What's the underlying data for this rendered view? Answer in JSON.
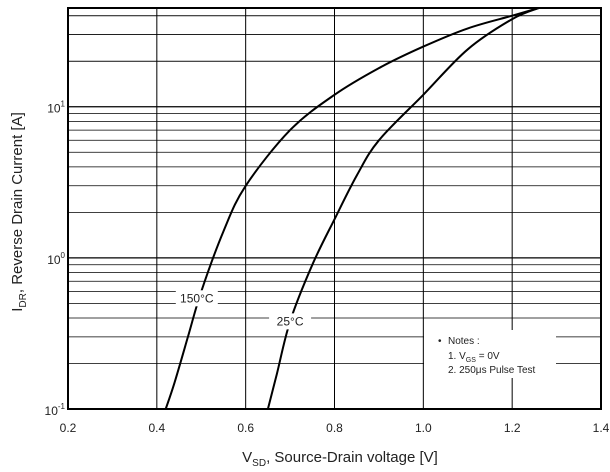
{
  "chart_data": {
    "type": "line",
    "xlabel": {
      "main": "V",
      "sub": "SD",
      "rest": ", Source-Drain voltage [V]"
    },
    "ylabel": {
      "main": "I",
      "sub": "DR",
      "rest": ", Reverse Drain Current [A]"
    },
    "xlim": [
      0.2,
      1.4
    ],
    "ylim": [
      0.1,
      45
    ],
    "yscale": "log",
    "grid": true,
    "x_ticks": [
      0.2,
      0.4,
      0.6,
      0.8,
      1.0,
      1.2,
      1.4
    ],
    "x_tick_labels": [
      "0.2",
      "0.4",
      "0.6",
      "0.8",
      "1.0",
      "1.2",
      "1.4"
    ],
    "y_ticks": [
      {
        "value": 0.1,
        "base": "10",
        "exp": "-1"
      },
      {
        "value": 1,
        "base": "10",
        "exp": "0"
      },
      {
        "value": 10,
        "base": "10",
        "exp": "1"
      }
    ],
    "series": [
      {
        "name": "150°C",
        "x": [
          0.42,
          0.44,
          0.47,
          0.5,
          0.55,
          0.6,
          0.7,
          0.8,
          0.9,
          1.0,
          1.1,
          1.2,
          1.26
        ],
        "y": [
          0.1,
          0.15,
          0.3,
          0.6,
          1.5,
          3.0,
          7.0,
          12.0,
          18.0,
          25.0,
          33.0,
          40.0,
          45.0
        ]
      },
      {
        "name": "25°C",
        "x": [
          0.65,
          0.67,
          0.7,
          0.75,
          0.8,
          0.85,
          0.9,
          1.0,
          1.1,
          1.2,
          1.26
        ],
        "y": [
          0.1,
          0.17,
          0.38,
          0.9,
          1.8,
          3.5,
          6.0,
          12.0,
          24.0,
          38.0,
          45.0
        ]
      }
    ],
    "notes": {
      "bullet": "•",
      "title": "Notes :",
      "line1": {
        "prefix": "1. V",
        "sub": "GS",
        "rest": " = 0V"
      },
      "line2": "2. 250μs Pulse Test"
    }
  }
}
